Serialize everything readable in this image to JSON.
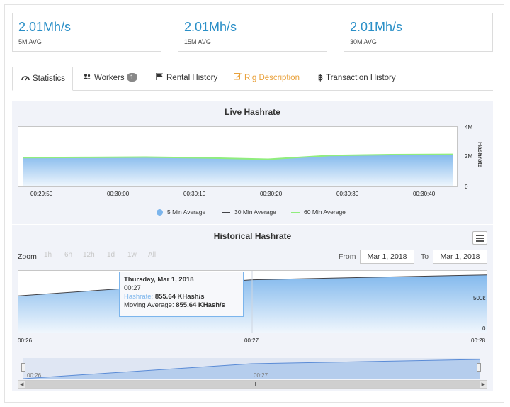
{
  "stats": [
    {
      "value": "2.01Mh/s",
      "label": "5M AVG"
    },
    {
      "value": "2.01Mh/s",
      "label": "15M AVG"
    },
    {
      "value": "2.01Mh/s",
      "label": "30M AVG"
    }
  ],
  "tabs": [
    {
      "label": "Statistics",
      "icon": "dashboard-icon",
      "active": true
    },
    {
      "label": "Workers",
      "icon": "users-icon",
      "badge": "1"
    },
    {
      "label": "Rental History",
      "icon": "flag-icon"
    },
    {
      "label": "Rig Description",
      "icon": "edit-icon",
      "color": "#e9a13b"
    },
    {
      "label": "Transaction History",
      "icon": "bitcoin-icon"
    }
  ],
  "live": {
    "title": "Live Hashrate",
    "ylabel": "Hashrate",
    "yticks": [
      "4M",
      "2M",
      "0"
    ],
    "xticks": [
      "00:29:50",
      "00:30:00",
      "00:30:10",
      "00:30:20",
      "00:30:30",
      "00:30:40"
    ],
    "legend": [
      "5 Min Average",
      "30 Min Average",
      "60 Min Average"
    ]
  },
  "historical": {
    "title": "Historical Hashrate",
    "zoom_label": "Zoom",
    "zoom_buttons": [
      "1h",
      "6h",
      "12h",
      "1d",
      "1w",
      "All"
    ],
    "from_label": "From",
    "from_value": "Mar 1, 2018",
    "to_label": "To",
    "to_value": "Mar 1, 2018",
    "ytick": "500k",
    "ytick0": "0",
    "xticks": [
      "00:26",
      "00:27",
      "00:28"
    ],
    "navigator_ticks": [
      "00:26",
      "00:27"
    ],
    "tooltip": {
      "date": "Thursday, Mar 1, 2018",
      "time": "00:27",
      "hashrate_label": "Hashrate:",
      "hashrate_value": "855.64 KHash/s",
      "moving_label": "Moving Average:",
      "moving_value": "855.64 KHash/s"
    }
  },
  "colors": {
    "accent": "#2a8fc7",
    "series_blue": "#7cb5ec",
    "series_green": "#90ed7d",
    "series_black": "#434348"
  },
  "chart_data": [
    {
      "type": "area",
      "title": "Live Hashrate",
      "ylabel": "Hashrate",
      "x": [
        "00:29:45",
        "00:29:50",
        "00:30:00",
        "00:30:10",
        "00:30:20",
        "00:30:30",
        "00:30:40",
        "00:30:45"
      ],
      "ylim": [
        0,
        4000000
      ],
      "series": [
        {
          "name": "5 Min Average",
          "values": [
            1880000,
            1900000,
            1920000,
            1870000,
            1780000,
            2020000,
            2080000,
            2100000
          ]
        },
        {
          "name": "30 Min Average",
          "values": [
            1880000,
            1900000,
            1920000,
            1870000,
            1780000,
            2020000,
            2080000,
            2100000
          ]
        },
        {
          "name": "60 Min Average",
          "values": [
            1880000,
            1900000,
            1920000,
            1870000,
            1780000,
            2020000,
            2080000,
            2100000
          ]
        }
      ]
    },
    {
      "type": "area",
      "title": "Historical Hashrate",
      "x": [
        "00:26",
        "00:27",
        "00:28"
      ],
      "series": [
        {
          "name": "Hashrate",
          "values": [
            595000,
            855640,
            935000
          ]
        }
      ]
    }
  ]
}
